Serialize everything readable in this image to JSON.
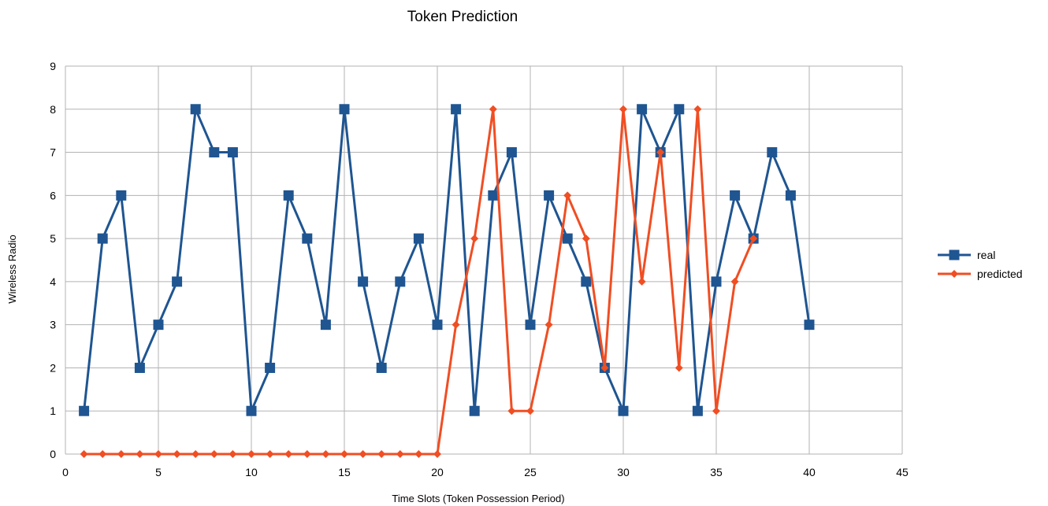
{
  "chart_data": {
    "type": "line",
    "title": "Token Prediction",
    "xlabel": "Time Slots (Token Possession Period)",
    "ylabel": "Wireless Radio",
    "xlim": [
      0,
      45
    ],
    "ylim": [
      0,
      9
    ],
    "xticks": [
      0,
      5,
      10,
      15,
      20,
      25,
      30,
      35,
      40,
      45
    ],
    "yticks": [
      0,
      1,
      2,
      3,
      4,
      5,
      6,
      7,
      8,
      9
    ],
    "grid": true,
    "legend_position": "right",
    "series": [
      {
        "name": "real",
        "color": "#1f5591",
        "marker": "square",
        "x": [
          1,
          2,
          3,
          4,
          5,
          6,
          7,
          8,
          9,
          10,
          11,
          12,
          13,
          14,
          15,
          16,
          17,
          18,
          19,
          20,
          21,
          22,
          23,
          24,
          25,
          26,
          27,
          28,
          29,
          30,
          31,
          32,
          33,
          34,
          35,
          36,
          37,
          38,
          39,
          40
        ],
        "y": [
          1,
          5,
          6,
          2,
          3,
          4,
          8,
          7,
          7,
          1,
          2,
          6,
          5,
          3,
          8,
          4,
          2,
          4,
          5,
          3,
          8,
          1,
          6,
          7,
          3,
          6,
          5,
          4,
          2,
          1,
          8,
          7,
          8,
          1,
          4,
          6,
          5,
          7,
          6,
          3
        ]
      },
      {
        "name": "predicted",
        "color": "#f04e23",
        "marker": "diamond",
        "x": [
          1,
          2,
          3,
          4,
          5,
          6,
          7,
          8,
          9,
          10,
          11,
          12,
          13,
          14,
          15,
          16,
          17,
          18,
          19,
          20,
          21,
          22,
          23,
          24,
          25,
          26,
          27,
          28,
          29,
          30,
          31,
          32,
          33,
          34,
          35,
          36,
          37
        ],
        "y": [
          0,
          0,
          0,
          0,
          0,
          0,
          0,
          0,
          0,
          0,
          0,
          0,
          0,
          0,
          0,
          0,
          0,
          0,
          0,
          0,
          3,
          5,
          8,
          1,
          1,
          3,
          6,
          5,
          2,
          8,
          4,
          7,
          2,
          8,
          1,
          4,
          5
        ]
      }
    ]
  }
}
